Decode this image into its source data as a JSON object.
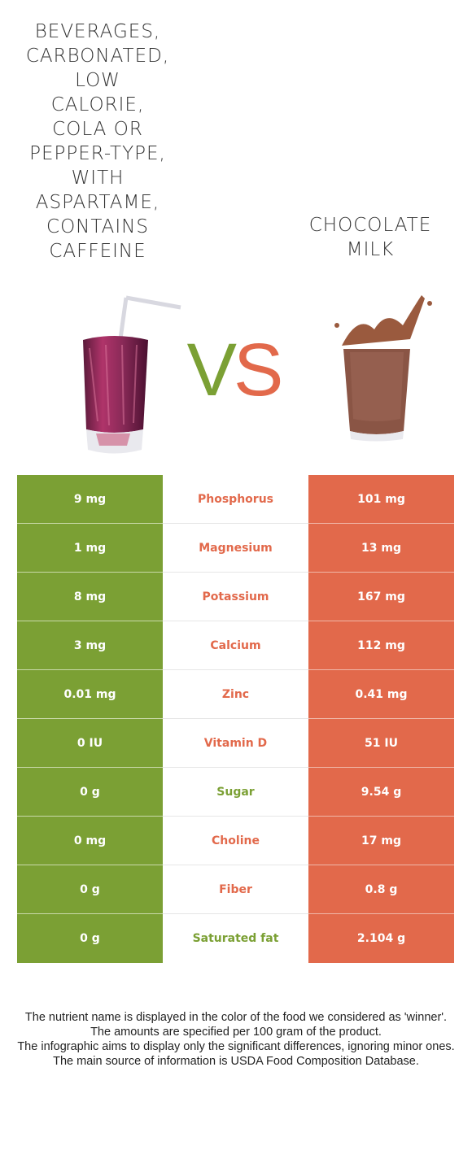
{
  "food_left": {
    "name": "BEVERAGES, CARBONATED, LOW CALORIE, COLA OR PEPPER-TYPE, WITH ASPARTAME, CONTAINS CAFFEINE",
    "lines": [
      "BEVERAGES,",
      "CARBONATED,",
      "LOW",
      "CALORIE,",
      "COLA OR",
      "PEPPER-TYPE,",
      "WITH",
      "ASPARTAME,",
      "CONTAINS",
      "CAFFEINE"
    ],
    "color": "#7ba034",
    "image_icon": "cola-glass-with-straw-icon"
  },
  "food_right": {
    "name": "CHOCOLATE MILK",
    "lines": [
      "CHOCOLATE",
      "MILK"
    ],
    "color": "#e2694b",
    "image_icon": "chocolate-milk-glass-icon"
  },
  "vs": {
    "v": "V",
    "s": "S"
  },
  "rows": [
    {
      "nutrient": "Phosphorus",
      "left": "9 mg",
      "right": "101 mg",
      "winner": "right"
    },
    {
      "nutrient": "Magnesium",
      "left": "1 mg",
      "right": "13 mg",
      "winner": "right"
    },
    {
      "nutrient": "Potassium",
      "left": "8 mg",
      "right": "167 mg",
      "winner": "right"
    },
    {
      "nutrient": "Calcium",
      "left": "3 mg",
      "right": "112 mg",
      "winner": "right"
    },
    {
      "nutrient": "Zinc",
      "left": "0.01 mg",
      "right": "0.41 mg",
      "winner": "right"
    },
    {
      "nutrient": "Vitamin D",
      "left": "0 IU",
      "right": "51 IU",
      "winner": "right"
    },
    {
      "nutrient": "Sugar",
      "left": "0 g",
      "right": "9.54 g",
      "winner": "left"
    },
    {
      "nutrient": "Choline",
      "left": "0 mg",
      "right": "17 mg",
      "winner": "right"
    },
    {
      "nutrient": "Fiber",
      "left": "0 g",
      "right": "0.8 g",
      "winner": "right"
    },
    {
      "nutrient": "Saturated fat",
      "left": "0 g",
      "right": "2.104 g",
      "winner": "left"
    }
  ],
  "notes": [
    "The nutrient name is displayed in the color of the food we considered as 'winner'.",
    "The amounts are specified per 100 gram of the product.",
    "The infographic aims to display only the significant differences, ignoring minor ones.",
    "The main source of information is USDA Food Composition Database."
  ]
}
